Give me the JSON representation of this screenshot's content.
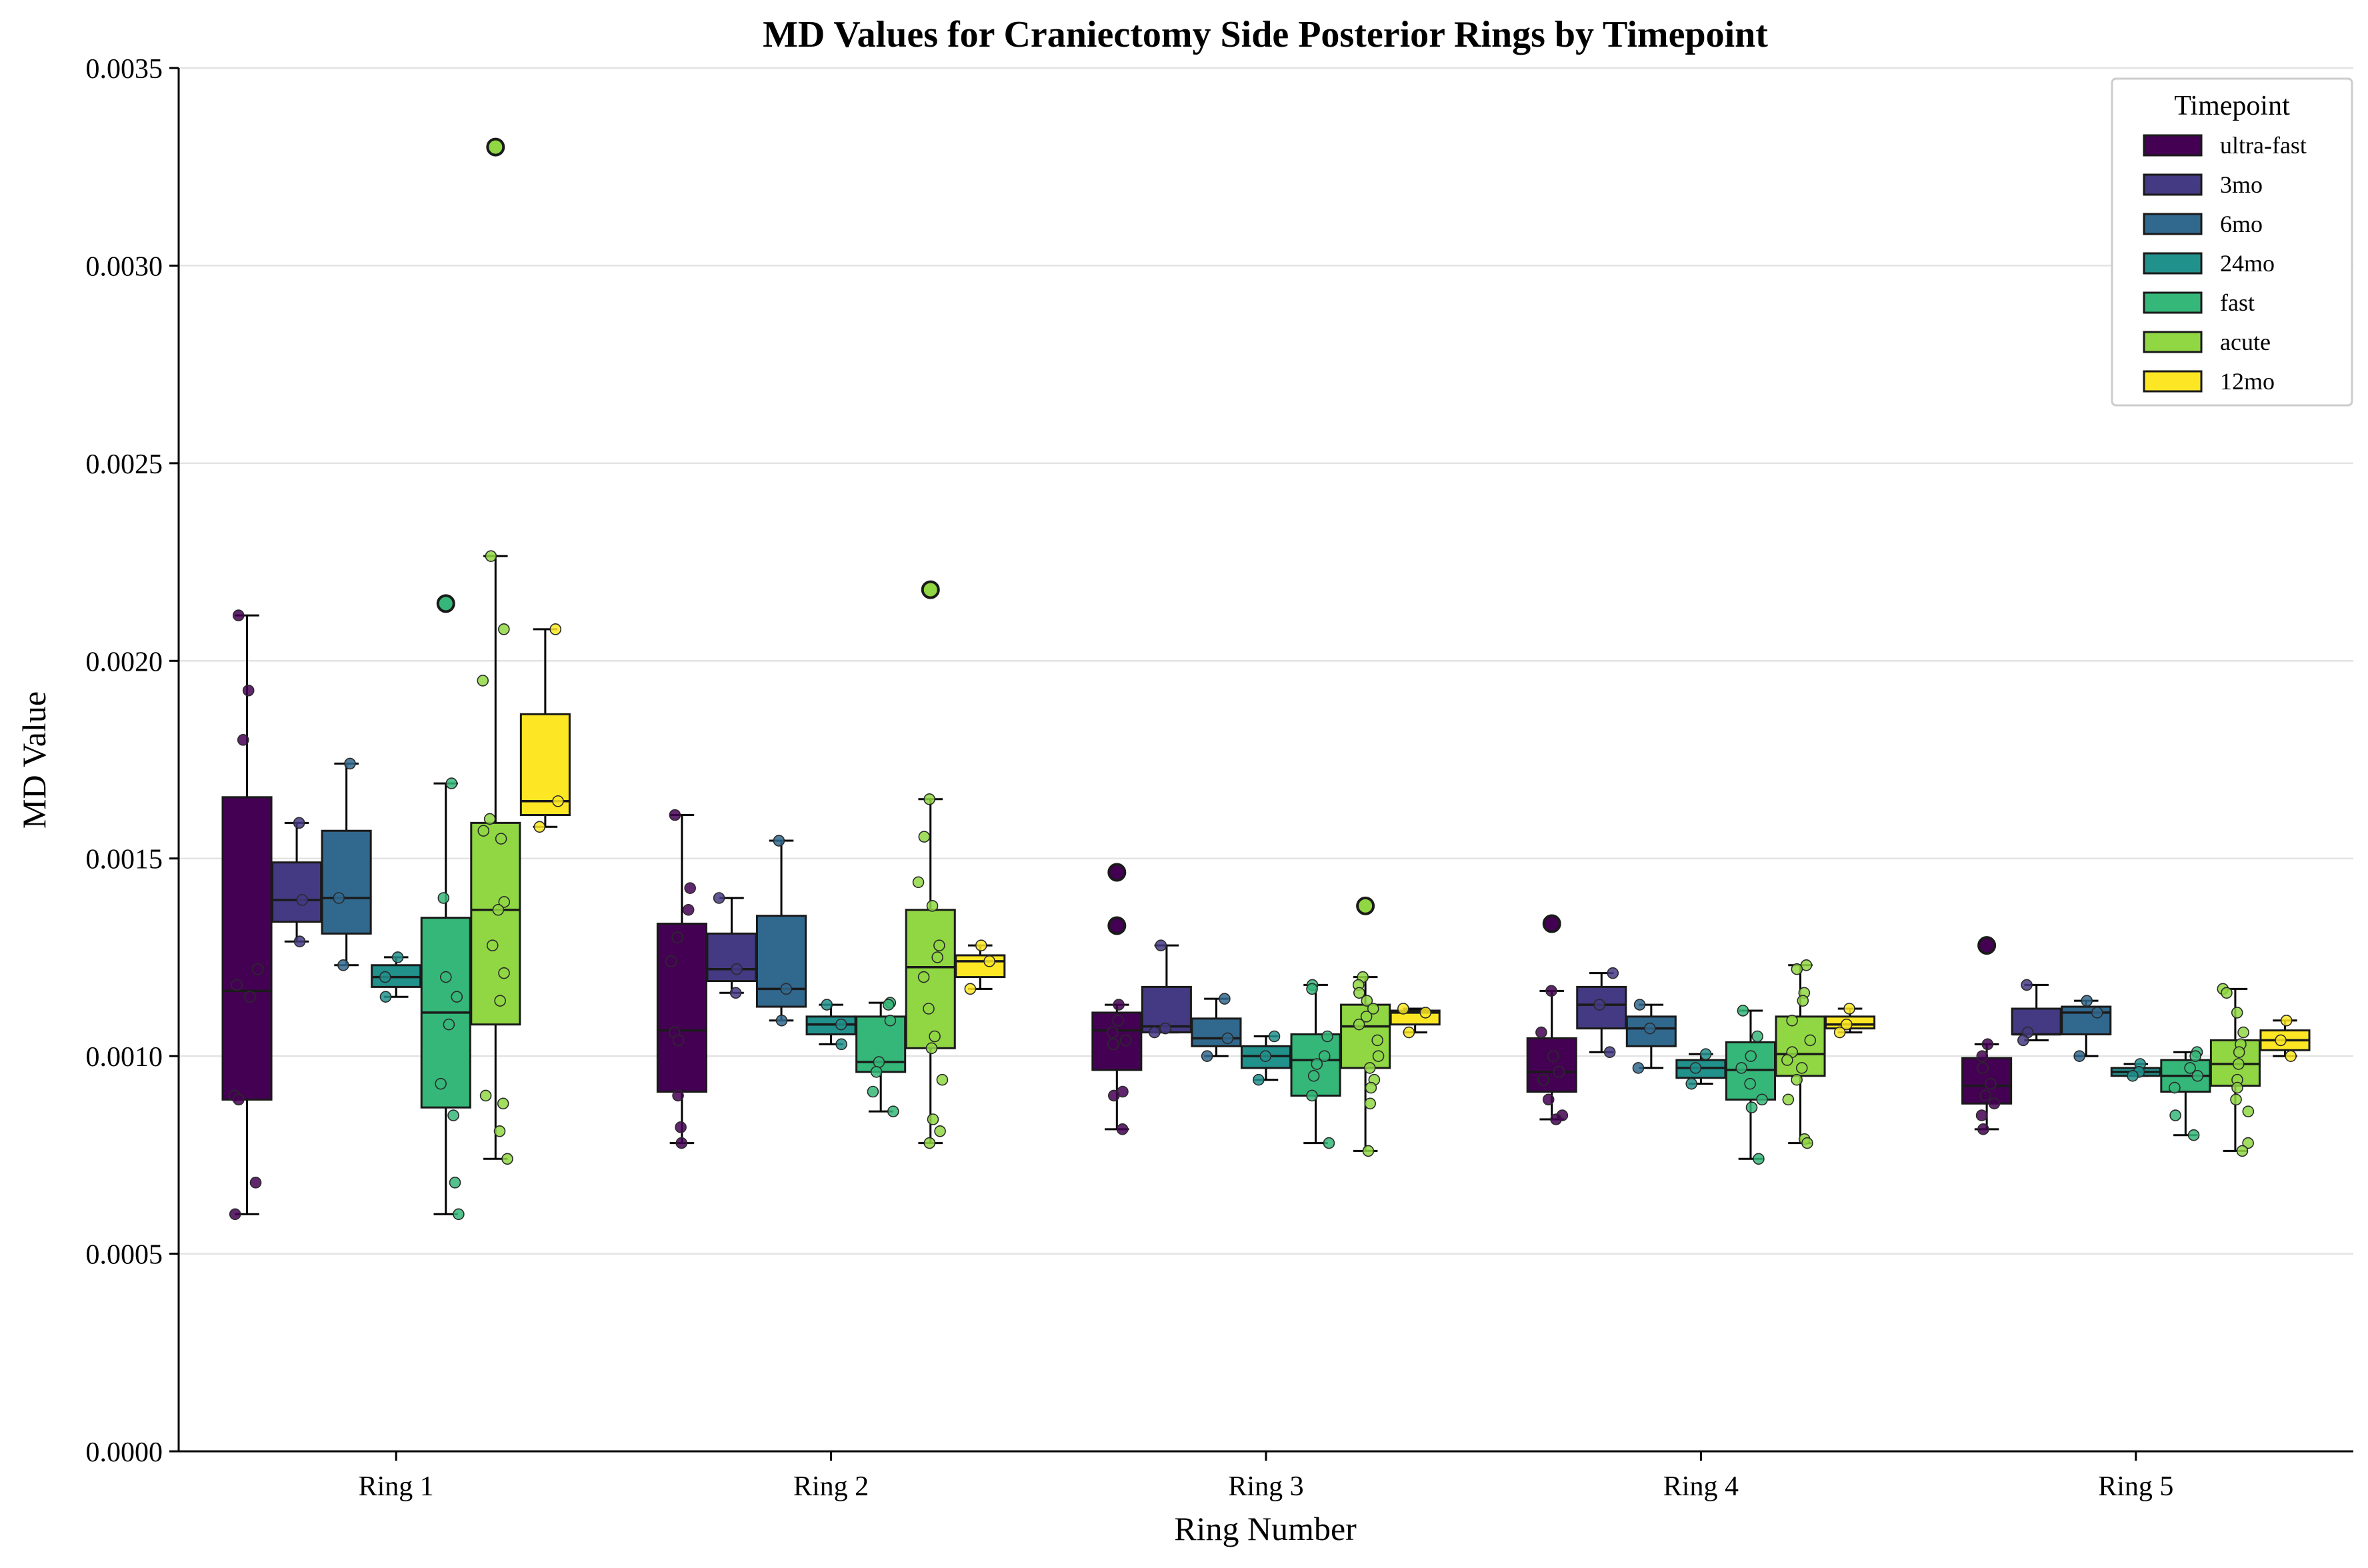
{
  "chart_data": {
    "type": "box",
    "title": "MD Values for Craniectomy Side Posterior Rings by Timepoint",
    "xlabel": "Ring Number",
    "ylabel": "MD Value",
    "ylim": [
      0,
      0.0035
    ],
    "yticks": [
      "0.0000",
      "0.0005",
      "0.0010",
      "0.0015",
      "0.0020",
      "0.0025",
      "0.0030",
      "0.0035"
    ],
    "grid": "horizontal",
    "legend": {
      "title": "Timepoint",
      "placement": "top-right"
    },
    "categories": [
      "Ring 1",
      "Ring 2",
      "Ring 3",
      "Ring 4",
      "Ring 5"
    ],
    "series": [
      {
        "name": "ultra-fast",
        "color": "#440154",
        "boxes": [
          {
            "q1": 0.00089,
            "median": 0.001165,
            "q3": 0.001655,
            "whislo": 0.0006,
            "whishi": 0.002115,
            "fliers": [],
            "points": [
              0.002115,
              0.001925,
              0.0018,
              0.00122,
              0.00118,
              0.00115,
              0.0009,
              0.00089,
              0.00068,
              0.0006
            ]
          },
          {
            "q1": 0.00091,
            "median": 0.001065,
            "q3": 0.001335,
            "whislo": 0.00078,
            "whishi": 0.00161,
            "fliers": [],
            "points": [
              0.00161,
              0.001425,
              0.00137,
              0.0013,
              0.00124,
              0.00106,
              0.00104,
              0.0009,
              0.00082,
              0.00078
            ]
          },
          {
            "q1": 0.000965,
            "median": 0.001065,
            "q3": 0.00111,
            "whislo": 0.000815,
            "whishi": 0.00113,
            "fliers": [
              0.001465,
              0.00133
            ],
            "points": [
              0.00113,
              0.00109,
              0.00106,
              0.00104,
              0.00103,
              0.00091,
              0.0009,
              0.000815
            ]
          },
          {
            "q1": 0.00091,
            "median": 0.00096,
            "q3": 0.001045,
            "whislo": 0.00084,
            "whishi": 0.001165,
            "fliers": [
              0.001335
            ],
            "points": [
              0.001165,
              0.00106,
              0.001,
              0.00096,
              0.00094,
              0.00089,
              0.00085,
              0.00084
            ]
          },
          {
            "q1": 0.00088,
            "median": 0.000925,
            "q3": 0.000995,
            "whislo": 0.000815,
            "whishi": 0.00103,
            "fliers": [
              0.00128
            ],
            "points": [
              0.00103,
              0.001,
              0.00097,
              0.00093,
              0.0009,
              0.00088,
              0.00085,
              0.000815
            ]
          }
        ]
      },
      {
        "name": "3mo",
        "color": "#443983",
        "boxes": [
          {
            "q1": 0.00134,
            "median": 0.001395,
            "q3": 0.00149,
            "whislo": 0.00129,
            "whishi": 0.00159,
            "fliers": [],
            "points": [
              0.00159,
              0.001395,
              0.00129
            ]
          },
          {
            "q1": 0.00119,
            "median": 0.00122,
            "q3": 0.00131,
            "whislo": 0.00116,
            "whishi": 0.0014,
            "fliers": [],
            "points": [
              0.0014,
              0.00122,
              0.00116
            ]
          },
          {
            "q1": 0.00106,
            "median": 0.001075,
            "q3": 0.001175,
            "whislo": 0.00106,
            "whishi": 0.00128,
            "fliers": [],
            "points": [
              0.00128,
              0.00107,
              0.00106
            ]
          },
          {
            "q1": 0.00107,
            "median": 0.00113,
            "q3": 0.001175,
            "whislo": 0.00101,
            "whishi": 0.00121,
            "fliers": [],
            "points": [
              0.00121,
              0.00113,
              0.00101
            ]
          },
          {
            "q1": 0.001055,
            "median": 0.001055,
            "q3": 0.00112,
            "whislo": 0.00104,
            "whishi": 0.00118,
            "fliers": [],
            "points": [
              0.00118,
              0.00106,
              0.00104
            ]
          }
        ]
      },
      {
        "name": "6mo",
        "color": "#31688e",
        "boxes": [
          {
            "q1": 0.00131,
            "median": 0.0014,
            "q3": 0.00157,
            "whislo": 0.00123,
            "whishi": 0.00174,
            "fliers": [],
            "points": [
              0.00174,
              0.0014,
              0.00123
            ]
          },
          {
            "q1": 0.001125,
            "median": 0.00117,
            "q3": 0.001355,
            "whislo": 0.00109,
            "whishi": 0.001545,
            "fliers": [],
            "points": [
              0.001545,
              0.00117,
              0.00109
            ]
          },
          {
            "q1": 0.001025,
            "median": 0.001045,
            "q3": 0.001095,
            "whislo": 0.001,
            "whishi": 0.001145,
            "fliers": [],
            "points": [
              0.001145,
              0.001045,
              0.001
            ]
          },
          {
            "q1": 0.001025,
            "median": 0.00107,
            "q3": 0.0011,
            "whislo": 0.00097,
            "whishi": 0.00113,
            "fliers": [],
            "points": [
              0.00113,
              0.00107,
              0.00097
            ]
          },
          {
            "q1": 0.001055,
            "median": 0.00111,
            "q3": 0.001125,
            "whislo": 0.001,
            "whishi": 0.00114,
            "fliers": [],
            "points": [
              0.00114,
              0.00111,
              0.001
            ]
          }
        ]
      },
      {
        "name": "24mo",
        "color": "#21918c",
        "boxes": [
          {
            "q1": 0.001175,
            "median": 0.0012,
            "q3": 0.00123,
            "whislo": 0.00115,
            "whishi": 0.00125,
            "fliers": [],
            "points": [
              0.00125,
              0.0012,
              0.00115
            ]
          },
          {
            "q1": 0.001055,
            "median": 0.00108,
            "q3": 0.0011,
            "whislo": 0.00103,
            "whishi": 0.00113,
            "fliers": [],
            "points": [
              0.00113,
              0.00108,
              0.00103
            ]
          },
          {
            "q1": 0.00097,
            "median": 0.001,
            "q3": 0.001025,
            "whislo": 0.00094,
            "whishi": 0.00105,
            "fliers": [],
            "points": [
              0.00105,
              0.001,
              0.00094
            ]
          },
          {
            "q1": 0.000945,
            "median": 0.00097,
            "q3": 0.00099,
            "whislo": 0.00093,
            "whishi": 0.001005,
            "fliers": [],
            "points": [
              0.001005,
              0.00097,
              0.00093
            ]
          },
          {
            "q1": 0.00095,
            "median": 0.00096,
            "q3": 0.00097,
            "whislo": 0.00095,
            "whishi": 0.00098,
            "fliers": [],
            "points": [
              0.00098,
              0.00096,
              0.00095
            ]
          }
        ]
      },
      {
        "name": "fast",
        "color": "#35b779",
        "boxes": [
          {
            "q1": 0.00087,
            "median": 0.00111,
            "q3": 0.00135,
            "whislo": 0.0006,
            "whishi": 0.00169,
            "fliers": [
              0.002145
            ],
            "points": [
              0.00169,
              0.0014,
              0.0012,
              0.00115,
              0.00108,
              0.00093,
              0.00085,
              0.00068,
              0.0006
            ]
          },
          {
            "q1": 0.00096,
            "median": 0.000985,
            "q3": 0.0011,
            "whislo": 0.00086,
            "whishi": 0.001135,
            "fliers": [],
            "points": [
              0.001135,
              0.00113,
              0.00109,
              0.000985,
              0.00096,
              0.00091,
              0.00086
            ]
          },
          {
            "q1": 0.0009,
            "median": 0.00099,
            "q3": 0.001055,
            "whislo": 0.00078,
            "whishi": 0.00118,
            "fliers": [],
            "points": [
              0.00118,
              0.00117,
              0.00105,
              0.001,
              0.00098,
              0.00095,
              0.0009,
              0.00078
            ]
          },
          {
            "q1": 0.00089,
            "median": 0.000965,
            "q3": 0.001035,
            "whislo": 0.00074,
            "whishi": 0.001115,
            "fliers": [],
            "points": [
              0.001115,
              0.00105,
              0.001,
              0.00097,
              0.00093,
              0.00089,
              0.00087,
              0.00074
            ]
          },
          {
            "q1": 0.00091,
            "median": 0.00095,
            "q3": 0.00099,
            "whislo": 0.0008,
            "whishi": 0.00101,
            "fliers": [],
            "points": [
              0.00101,
              0.001,
              0.00097,
              0.00095,
              0.00092,
              0.00085,
              0.0008
            ]
          }
        ]
      },
      {
        "name": "acute",
        "color": "#90d743",
        "boxes": [
          {
            "q1": 0.00108,
            "median": 0.00137,
            "q3": 0.00159,
            "whislo": 0.00074,
            "whishi": 0.002265,
            "fliers": [
              0.0033
            ],
            "points": [
              0.002265,
              0.00208,
              0.00195,
              0.0016,
              0.00157,
              0.00155,
              0.00139,
              0.00137,
              0.00128,
              0.00121,
              0.00114,
              0.0009,
              0.00088,
              0.00081,
              0.00074
            ]
          },
          {
            "q1": 0.00102,
            "median": 0.001225,
            "q3": 0.00137,
            "whislo": 0.00078,
            "whishi": 0.00165,
            "fliers": [
              0.00218
            ],
            "points": [
              0.00165,
              0.001555,
              0.00144,
              0.00138,
              0.00128,
              0.00125,
              0.0012,
              0.00112,
              0.00105,
              0.00102,
              0.00094,
              0.00084,
              0.00081,
              0.00078
            ]
          },
          {
            "q1": 0.00097,
            "median": 0.001075,
            "q3": 0.00113,
            "whislo": 0.00076,
            "whishi": 0.0012,
            "fliers": [
              0.00138
            ],
            "points": [
              0.0012,
              0.00118,
              0.00116,
              0.00114,
              0.00112,
              0.0011,
              0.00108,
              0.00104,
              0.001,
              0.00097,
              0.00094,
              0.00092,
              0.00088,
              0.00076
            ]
          },
          {
            "q1": 0.00095,
            "median": 0.001005,
            "q3": 0.0011,
            "whislo": 0.00078,
            "whishi": 0.00123,
            "fliers": [],
            "points": [
              0.00123,
              0.00122,
              0.00116,
              0.00114,
              0.00109,
              0.00104,
              0.00101,
              0.00099,
              0.00097,
              0.00094,
              0.00089,
              0.00079,
              0.00078
            ]
          },
          {
            "q1": 0.000925,
            "median": 0.00098,
            "q3": 0.00104,
            "whislo": 0.00076,
            "whishi": 0.00117,
            "fliers": [],
            "points": [
              0.00117,
              0.00116,
              0.00111,
              0.00106,
              0.00103,
              0.00101,
              0.00098,
              0.00094,
              0.00092,
              0.00089,
              0.00086,
              0.00078,
              0.00076
            ]
          }
        ]
      },
      {
        "name": "12mo",
        "color": "#fde725",
        "boxes": [
          {
            "q1": 0.00161,
            "median": 0.001645,
            "q3": 0.001865,
            "whislo": 0.00158,
            "whishi": 0.00208,
            "fliers": [],
            "points": [
              0.00208,
              0.001645,
              0.00158
            ]
          },
          {
            "q1": 0.0012,
            "median": 0.00124,
            "q3": 0.001255,
            "whislo": 0.00117,
            "whishi": 0.00128,
            "fliers": [],
            "points": [
              0.00128,
              0.00124,
              0.00117
            ]
          },
          {
            "q1": 0.00108,
            "median": 0.00111,
            "q3": 0.001115,
            "whislo": 0.00106,
            "whishi": 0.00112,
            "fliers": [],
            "points": [
              0.00112,
              0.00111,
              0.00106
            ]
          },
          {
            "q1": 0.00107,
            "median": 0.00108,
            "q3": 0.0011,
            "whislo": 0.00106,
            "whishi": 0.00112,
            "fliers": [],
            "points": [
              0.00112,
              0.00108,
              0.00106
            ]
          },
          {
            "q1": 0.001015,
            "median": 0.00104,
            "q3": 0.001065,
            "whislo": 0.001,
            "whishi": 0.00109,
            "fliers": [],
            "points": [
              0.00109,
              0.00104,
              0.001
            ]
          }
        ]
      }
    ]
  }
}
